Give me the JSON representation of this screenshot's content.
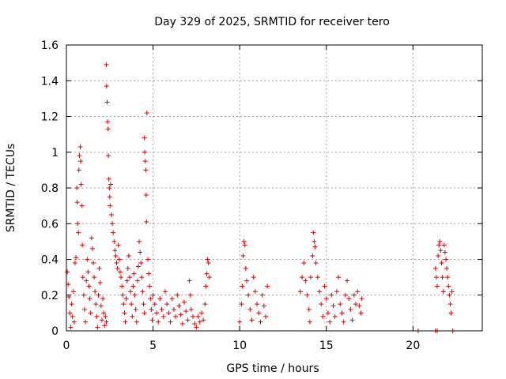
{
  "chart_data": {
    "type": "scatter",
    "title": "Day 329 of 2025, SRMTID for receiver tero",
    "xlabel": "GPS time / hours",
    "ylabel": "SRMTID / TECUs",
    "xlim": [
      0,
      24
    ],
    "ylim": [
      0,
      1.6
    ],
    "x_ticks": [
      0,
      5,
      10,
      15,
      20
    ],
    "y_ticks": [
      0,
      0.2,
      0.4,
      0.6,
      0.8,
      1,
      1.2,
      1.4,
      1.6
    ],
    "x_tick_labels": [
      "0",
      "5",
      "10",
      "15",
      "20"
    ],
    "y_tick_labels": [
      "0",
      "0.2",
      "0.4",
      "0.6",
      "0.8",
      "1",
      "1.2",
      "1.4",
      "1.6"
    ],
    "grid": true,
    "marker": "+",
    "color": "#e00000",
    "series": [
      {
        "name": "SRMTID",
        "points": [
          [
            0.05,
            0.33
          ],
          [
            0.1,
            0.26
          ],
          [
            0.15,
            0.19
          ],
          [
            0.2,
            0.1
          ],
          [
            0.25,
            0.02
          ],
          [
            0.3,
            0.15
          ],
          [
            0.35,
            0.08
          ],
          [
            0.4,
            0.22
          ],
          [
            0.45,
            0.05
          ],
          [
            0.5,
            0.38
          ],
          [
            0.55,
            0.41
          ],
          [
            0.6,
            0.8
          ],
          [
            0.62,
            0.72
          ],
          [
            0.65,
            0.6
          ],
          [
            0.7,
            0.55
          ],
          [
            0.72,
            0.9
          ],
          [
            0.75,
            0.98
          ],
          [
            0.8,
            1.03
          ],
          [
            0.82,
            0.95
          ],
          [
            0.85,
            0.82
          ],
          [
            0.9,
            0.7
          ],
          [
            0.92,
            0.48
          ],
          [
            0.95,
            0.3
          ],
          [
            1.0,
            0.2
          ],
          [
            1.05,
            0.12
          ],
          [
            1.1,
            0.05
          ],
          [
            1.15,
            0.28
          ],
          [
            1.2,
            0.4
          ],
          [
            1.25,
            0.33
          ],
          [
            1.3,
            0.25
          ],
          [
            1.35,
            0.18
          ],
          [
            1.4,
            0.1
          ],
          [
            1.45,
            0.52
          ],
          [
            1.5,
            0.46
          ],
          [
            1.55,
            0.38
          ],
          [
            1.6,
            0.3
          ],
          [
            1.65,
            0.22
          ],
          [
            1.7,
            0.15
          ],
          [
            1.75,
            0.08
          ],
          [
            1.8,
            0.02
          ],
          [
            1.85,
            0.2
          ],
          [
            1.9,
            0.35
          ],
          [
            1.95,
            0.27
          ],
          [
            2.0,
            0.14
          ],
          [
            2.05,
            0.06
          ],
          [
            2.1,
            0.18
          ],
          [
            2.15,
            0.1
          ],
          [
            2.2,
            0.03
          ],
          [
            2.25,
            0.08
          ],
          [
            2.3,
            0.05
          ],
          [
            2.3,
            1.49
          ],
          [
            2.32,
            1.37
          ],
          [
            2.35,
            1.28
          ],
          [
            2.38,
            1.17
          ],
          [
            2.4,
            1.13
          ],
          [
            2.42,
            0.98
          ],
          [
            2.45,
            0.85
          ],
          [
            2.48,
            0.8
          ],
          [
            2.5,
            0.75
          ],
          [
            2.52,
            0.7
          ],
          [
            2.55,
            0.82
          ],
          [
            2.6,
            0.65
          ],
          [
            2.65,
            0.6
          ],
          [
            2.7,
            0.55
          ],
          [
            2.75,
            0.5
          ],
          [
            2.8,
            0.45
          ],
          [
            2.85,
            0.42
          ],
          [
            2.9,
            0.38
          ],
          [
            2.95,
            0.35
          ],
          [
            3.0,
            0.48
          ],
          [
            3.05,
            0.4
          ],
          [
            3.1,
            0.33
          ],
          [
            3.15,
            0.3
          ],
          [
            3.2,
            0.25
          ],
          [
            3.25,
            0.2
          ],
          [
            3.3,
            0.15
          ],
          [
            3.35,
            0.1
          ],
          [
            3.4,
            0.05
          ],
          [
            3.45,
            0.18
          ],
          [
            3.5,
            0.28
          ],
          [
            3.55,
            0.35
          ],
          [
            3.6,
            0.42
          ],
          [
            3.65,
            0.3
          ],
          [
            3.7,
            0.22
          ],
          [
            3.75,
            0.15
          ],
          [
            3.8,
            0.08
          ],
          [
            3.85,
            0.25
          ],
          [
            3.9,
            0.32
          ],
          [
            3.95,
            0.2
          ],
          [
            4.0,
            0.12
          ],
          [
            4.05,
            0.05
          ],
          [
            4.1,
            0.28
          ],
          [
            4.15,
            0.36
          ],
          [
            4.2,
            0.5
          ],
          [
            4.25,
            0.44
          ],
          [
            4.3,
            0.38
          ],
          [
            4.35,
            0.3
          ],
          [
            4.4,
            0.22
          ],
          [
            4.45,
            0.15
          ],
          [
            4.5,
            0.1
          ],
          [
            4.5,
            1.08
          ],
          [
            4.52,
            1.0
          ],
          [
            4.55,
            0.95
          ],
          [
            4.58,
            0.9
          ],
          [
            4.6,
            0.76
          ],
          [
            4.62,
            0.61
          ],
          [
            4.65,
            1.22
          ],
          [
            4.7,
            0.4
          ],
          [
            4.75,
            0.32
          ],
          [
            4.8,
            0.25
          ],
          [
            4.85,
            0.18
          ],
          [
            4.9,
            0.12
          ],
          [
            4.95,
            0.06
          ],
          [
            5.0,
            0.2
          ],
          [
            5.1,
            0.15
          ],
          [
            5.2,
            0.1
          ],
          [
            5.3,
            0.05
          ],
          [
            5.4,
            0.18
          ],
          [
            5.5,
            0.12
          ],
          [
            5.6,
            0.08
          ],
          [
            5.7,
            0.22
          ],
          [
            5.8,
            0.15
          ],
          [
            5.9,
            0.1
          ],
          [
            6.0,
            0.05
          ],
          [
            6.1,
            0.18
          ],
          [
            6.2,
            0.12
          ],
          [
            6.3,
            0.08
          ],
          [
            6.4,
            0.2
          ],
          [
            6.5,
            0.14
          ],
          [
            6.6,
            0.09
          ],
          [
            6.7,
            0.04
          ],
          [
            6.8,
            0.16
          ],
          [
            6.9,
            0.11
          ],
          [
            7.0,
            0.06
          ],
          [
            7.1,
            0.28
          ],
          [
            7.15,
            0.2
          ],
          [
            7.2,
            0.12
          ],
          [
            7.3,
            0.08
          ],
          [
            7.4,
            0.04
          ],
          [
            7.5,
            0.02
          ],
          [
            7.6,
            0.08
          ],
          [
            7.7,
            0.05
          ],
          [
            7.8,
            0.1
          ],
          [
            7.9,
            0.06
          ],
          [
            8.0,
            0.15
          ],
          [
            8.05,
            0.25
          ],
          [
            8.1,
            0.32
          ],
          [
            8.15,
            0.4
          ],
          [
            8.2,
            0.38
          ],
          [
            8.25,
            0.3
          ],
          [
            10.0,
            0.05
          ],
          [
            10.1,
            0.15
          ],
          [
            10.15,
            0.25
          ],
          [
            10.2,
            0.42
          ],
          [
            10.25,
            0.5
          ],
          [
            10.3,
            0.48
          ],
          [
            10.35,
            0.35
          ],
          [
            10.4,
            0.28
          ],
          [
            10.5,
            0.2
          ],
          [
            10.6,
            0.12
          ],
          [
            10.7,
            0.06
          ],
          [
            10.8,
            0.3
          ],
          [
            10.9,
            0.22
          ],
          [
            11.0,
            0.15
          ],
          [
            11.1,
            0.1
          ],
          [
            11.2,
            0.05
          ],
          [
            11.3,
            0.2
          ],
          [
            11.4,
            0.14
          ],
          [
            11.5,
            0.08
          ],
          [
            11.6,
            0.25
          ],
          [
            13.5,
            0.22
          ],
          [
            13.6,
            0.3
          ],
          [
            13.7,
            0.38
          ],
          [
            13.8,
            0.28
          ],
          [
            13.9,
            0.2
          ],
          [
            14.0,
            0.12
          ],
          [
            14.05,
            0.05
          ],
          [
            14.1,
            0.3
          ],
          [
            14.2,
            0.42
          ],
          [
            14.25,
            0.55
          ],
          [
            14.3,
            0.5
          ],
          [
            14.35,
            0.47
          ],
          [
            14.4,
            0.38
          ],
          [
            14.5,
            0.3
          ],
          [
            14.6,
            0.22
          ],
          [
            14.7,
            0.15
          ],
          [
            14.8,
            0.08
          ],
          [
            14.9,
            0.25
          ],
          [
            15.0,
            0.18
          ],
          [
            15.1,
            0.1
          ],
          [
            15.2,
            0.05
          ],
          [
            15.3,
            0.2
          ],
          [
            15.4,
            0.14
          ],
          [
            15.5,
            0.08
          ],
          [
            15.6,
            0.22
          ],
          [
            15.7,
            0.3
          ],
          [
            15.8,
            0.15
          ],
          [
            15.9,
            0.1
          ],
          [
            16.0,
            0.05
          ],
          [
            16.1,
            0.2
          ],
          [
            16.2,
            0.28
          ],
          [
            16.3,
            0.18
          ],
          [
            16.4,
            0.12
          ],
          [
            16.5,
            0.06
          ],
          [
            16.6,
            0.2
          ],
          [
            16.7,
            0.15
          ],
          [
            16.8,
            0.22
          ],
          [
            16.9,
            0.14
          ],
          [
            17.0,
            0.1
          ],
          [
            17.05,
            0.18
          ],
          [
            20.3,
            0.0
          ],
          [
            21.3,
            0.0
          ],
          [
            21.4,
            0.0
          ],
          [
            22.3,
            0.0
          ],
          [
            21.3,
            0.35
          ],
          [
            21.35,
            0.3
          ],
          [
            21.4,
            0.25
          ],
          [
            21.45,
            0.42
          ],
          [
            21.5,
            0.48
          ],
          [
            21.55,
            0.5
          ],
          [
            21.6,
            0.45
          ],
          [
            21.65,
            0.38
          ],
          [
            21.7,
            0.3
          ],
          [
            21.75,
            0.22
          ],
          [
            21.8,
            0.48
          ],
          [
            21.85,
            0.44
          ],
          [
            21.9,
            0.4
          ],
          [
            21.95,
            0.35
          ],
          [
            22.0,
            0.3
          ],
          [
            22.05,
            0.25
          ],
          [
            22.1,
            0.2
          ],
          [
            22.15,
            0.15
          ],
          [
            22.2,
            0.1
          ],
          [
            22.25,
            0.22
          ]
        ]
      }
    ]
  }
}
